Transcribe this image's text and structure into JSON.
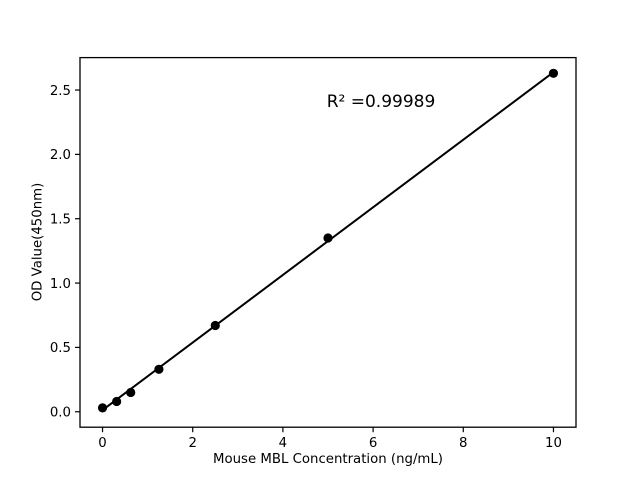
{
  "figure": {
    "background_color": "#ffffff",
    "foreground_color": "#000000"
  },
  "chart_data": {
    "type": "scatter",
    "title": "",
    "xlabel": "Mouse MBL Concentration (ng/mL)",
    "ylabel": "OD Value(450nm)",
    "series": [
      {
        "name": "standard-curve-points",
        "marker": "filled-black-circle",
        "x": [
          0,
          0.3125,
          0.625,
          1.25,
          2.5,
          5,
          10
        ],
        "y": [
          0.03,
          0.08,
          0.15,
          0.33,
          0.67,
          1.35,
          2.63
        ]
      }
    ],
    "fit_line": {
      "type": "linear",
      "slope": 0.2626,
      "intercept": 0.013,
      "x_start": 0,
      "x_end": 10,
      "color": "#000000"
    },
    "annotation": {
      "text": "R² =0.99989",
      "r_squared": 0.99989
    },
    "xlim": [
      -0.5,
      10.5
    ],
    "ylim": [
      -0.12,
      2.752
    ],
    "x_ticks": {
      "values": [
        0,
        2,
        4,
        6,
        8,
        10
      ],
      "labels": [
        "0",
        "2",
        "4",
        "6",
        "8",
        "10"
      ]
    },
    "y_ticks": {
      "values": [
        0,
        0.5,
        1.0,
        1.5,
        2.0,
        2.5
      ],
      "labels": [
        "0.0",
        "0.5",
        "1.0",
        "1.5",
        "2.0",
        "2.5"
      ]
    },
    "grid": false,
    "legend": "none",
    "point_color": "#000000",
    "line_color": "#000000"
  }
}
